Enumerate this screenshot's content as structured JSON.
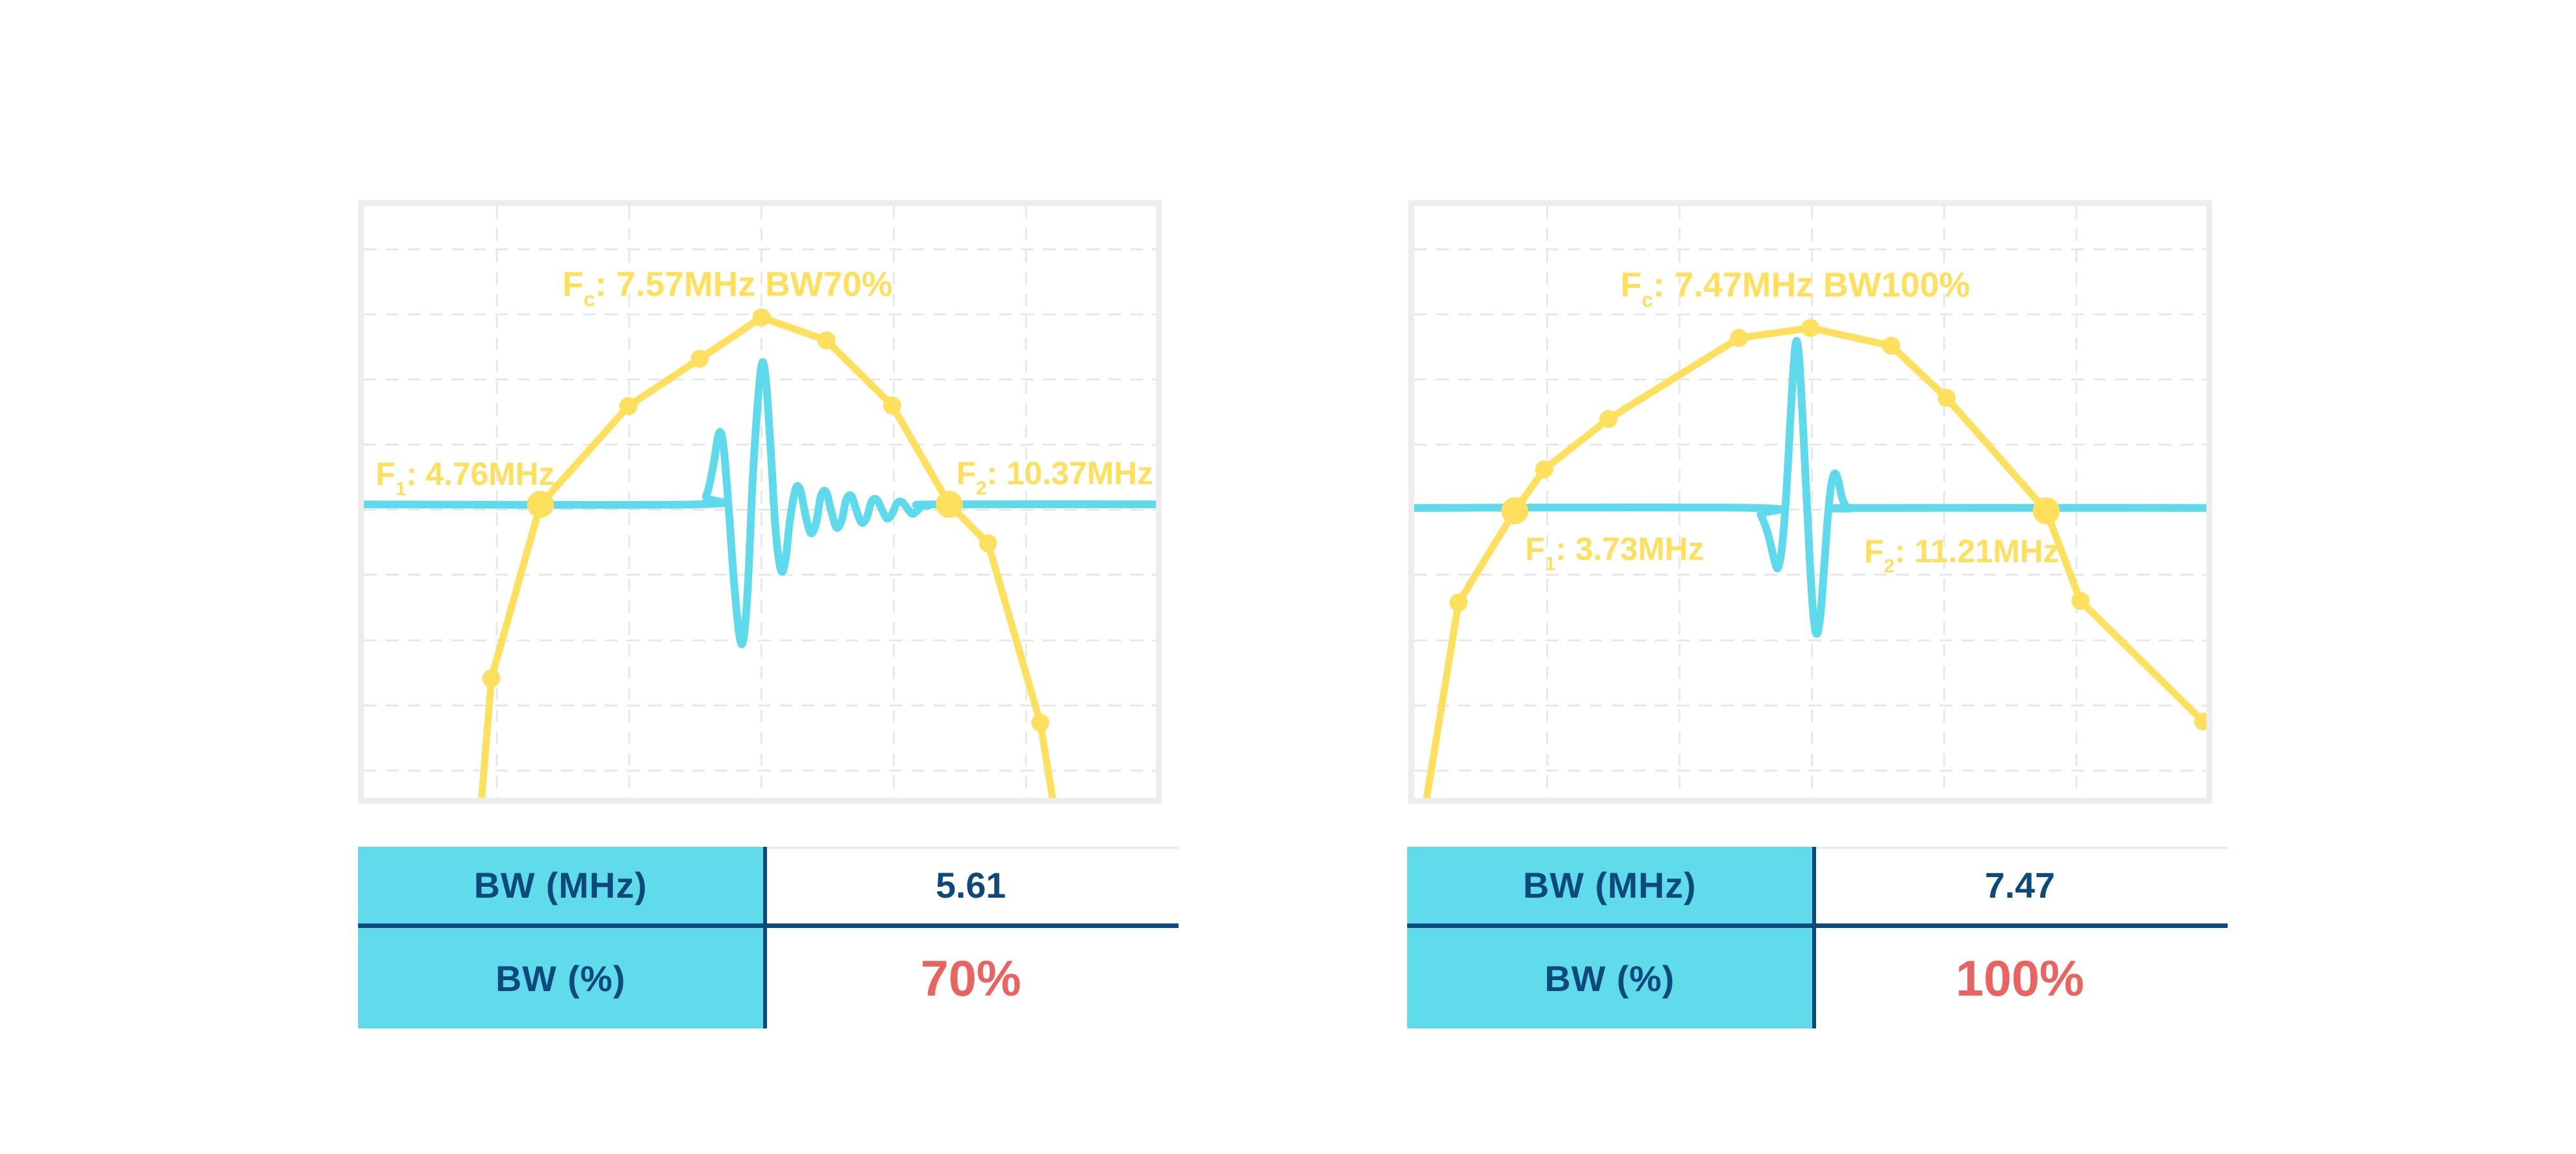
{
  "colors": {
    "yellow": "#FFE05E",
    "cyan": "#5FD9EC",
    "table_fill": "#5FDBEC",
    "dark_blue": "#0D4A7B",
    "red": "#E96360",
    "border": "#EDEDED",
    "grid": "#E8E8E8",
    "light_rule": "#D9EFF7"
  },
  "chart_data": [
    {
      "type": "line",
      "panel": "left",
      "title": {
        "pre": "F",
        "sub": "c",
        "rest": ": 7.57MHz BW70%",
        "x": 0.459,
        "y": 0.152,
        "anchor": "middle"
      },
      "labels": [
        {
          "name": "f1-label",
          "pre": "F",
          "sub": "1",
          "rest": ": 4.76MHz",
          "x": 0.015,
          "y": 0.471,
          "anchor": "start"
        },
        {
          "name": "f2-label",
          "pre": "F",
          "sub": "2",
          "rest": ": 10.37MHz",
          "x": 0.748,
          "y": 0.47,
          "anchor": "start"
        }
      ],
      "values": {
        "fc_mhz": 7.57,
        "f1_mhz": 4.76,
        "f2_mhz": 10.37,
        "bw_mhz": 5.61,
        "bw_pct": 70
      },
      "baseline_y": 0.504,
      "grid": {
        "vx": [
          0.168,
          0.335,
          0.502,
          0.669,
          0.836
        ],
        "hy": [
          0.073,
          0.183,
          0.293,
          0.403,
          0.513,
          0.623,
          0.734,
          0.844,
          0.954
        ]
      },
      "spectrum": [
        [
          0.147,
          1.03,
          0
        ],
        [
          0.161,
          0.798,
          1
        ],
        [
          0.223,
          0.504,
          2
        ],
        [
          0.334,
          0.338,
          1
        ],
        [
          0.424,
          0.258,
          1
        ],
        [
          0.502,
          0.188,
          1
        ],
        [
          0.584,
          0.227,
          1
        ],
        [
          0.667,
          0.337,
          1
        ],
        [
          0.739,
          0.504,
          2
        ],
        [
          0.788,
          0.57,
          1
        ],
        [
          0.854,
          0.873,
          1
        ],
        [
          0.873,
          1.03,
          0
        ]
      ],
      "waveform": [
        [
          0,
          0.504
        ],
        [
          0.42,
          0.504
        ],
        [
          0.432,
          0.49
        ],
        [
          0.441,
          0.44
        ],
        [
          0.448,
          0.385
        ],
        [
          0.4535,
          0.4
        ],
        [
          0.46,
          0.5
        ],
        [
          0.467,
          0.63
        ],
        [
          0.474,
          0.725
        ],
        [
          0.479,
          0.733
        ],
        [
          0.4845,
          0.65
        ],
        [
          0.491,
          0.46
        ],
        [
          0.498,
          0.32
        ],
        [
          0.503,
          0.264
        ],
        [
          0.508,
          0.3
        ],
        [
          0.514,
          0.42
        ],
        [
          0.52,
          0.55
        ],
        [
          0.5265,
          0.615
        ],
        [
          0.532,
          0.6
        ],
        [
          0.538,
          0.53
        ],
        [
          0.545,
          0.478
        ],
        [
          0.551,
          0.48
        ],
        [
          0.558,
          0.525
        ],
        [
          0.5645,
          0.553
        ],
        [
          0.571,
          0.535
        ],
        [
          0.577,
          0.49
        ],
        [
          0.5835,
          0.483
        ],
        [
          0.59,
          0.515
        ],
        [
          0.5965,
          0.543
        ],
        [
          0.603,
          0.532
        ],
        [
          0.609,
          0.496
        ],
        [
          0.6155,
          0.49
        ],
        [
          0.622,
          0.515
        ],
        [
          0.6285,
          0.535
        ],
        [
          0.635,
          0.526
        ],
        [
          0.641,
          0.499
        ],
        [
          0.6475,
          0.496
        ],
        [
          0.654,
          0.513
        ],
        [
          0.6605,
          0.528
        ],
        [
          0.667,
          0.52
        ],
        [
          0.673,
          0.502
        ],
        [
          0.6795,
          0.5
        ],
        [
          0.686,
          0.511
        ],
        [
          0.6925,
          0.52
        ],
        [
          0.699,
          0.514
        ],
        [
          0.7055,
          0.505
        ],
        [
          0.712,
          0.507
        ],
        [
          0.72,
          0.504
        ],
        [
          1.0,
          0.504
        ]
      ]
    },
    {
      "type": "line",
      "panel": "right",
      "title": {
        "pre": "F",
        "sub": "c",
        "rest": ": 7.47MHz BW100%",
        "x": 0.481,
        "y": 0.153,
        "anchor": "middle"
      },
      "labels": [
        {
          "name": "f1-label",
          "pre": "F",
          "sub": "1",
          "rest": ": 3.73MHz",
          "x": 0.14,
          "y": 0.598,
          "anchor": "start"
        },
        {
          "name": "f2-label",
          "pre": "F",
          "sub": "2",
          "rest": ": 11.21MHz",
          "x": 0.568,
          "y": 0.602,
          "anchor": "start"
        }
      ],
      "values": {
        "fc_mhz": 7.47,
        "f1_mhz": 3.73,
        "f2_mhz": 11.21,
        "bw_mhz": 7.47,
        "bw_pct": 100
      },
      "baseline_y": 0.51,
      "grid": {
        "vx": [
          0.168,
          0.335,
          0.502,
          0.669,
          0.836
        ],
        "hy": [
          0.073,
          0.183,
          0.293,
          0.403,
          0.513,
          0.623,
          0.734,
          0.844,
          0.954
        ]
      },
      "spectrum": [
        [
          0.012,
          1.03,
          0
        ],
        [
          0.056,
          0.67,
          1
        ],
        [
          0.127,
          0.515,
          2
        ],
        [
          0.164,
          0.445,
          1
        ],
        [
          0.245,
          0.36,
          1
        ],
        [
          0.41,
          0.223,
          1
        ],
        [
          0.5,
          0.206,
          1
        ],
        [
          0.602,
          0.236,
          1
        ],
        [
          0.672,
          0.324,
          1
        ],
        [
          0.798,
          0.515,
          2
        ],
        [
          0.841,
          0.667,
          1
        ],
        [
          0.996,
          0.871,
          1
        ]
      ],
      "waveform": [
        [
          0,
          0.51
        ],
        [
          0.428,
          0.51
        ],
        [
          0.4375,
          0.522
        ],
        [
          0.447,
          0.556
        ],
        [
          0.4545,
          0.598
        ],
        [
          0.459,
          0.612
        ],
        [
          0.4635,
          0.585
        ],
        [
          0.468,
          0.52
        ],
        [
          0.4725,
          0.42
        ],
        [
          0.477,
          0.31
        ],
        [
          0.4815,
          0.232
        ],
        [
          0.4855,
          0.25
        ],
        [
          0.49,
          0.35
        ],
        [
          0.4945,
          0.47
        ],
        [
          0.499,
          0.59
        ],
        [
          0.5035,
          0.685
        ],
        [
          0.508,
          0.723
        ],
        [
          0.5125,
          0.695
        ],
        [
          0.517,
          0.62
        ],
        [
          0.5215,
          0.535
        ],
        [
          0.526,
          0.475
        ],
        [
          0.5305,
          0.452
        ],
        [
          0.535,
          0.462
        ],
        [
          0.5395,
          0.49
        ],
        [
          0.544,
          0.505
        ],
        [
          0.55,
          0.511
        ],
        [
          0.56,
          0.51
        ],
        [
          1.0,
          0.51
        ]
      ]
    }
  ],
  "tables": [
    {
      "rows": [
        {
          "label": "BW (MHz)",
          "value": "5.61"
        },
        {
          "label": "BW (%)",
          "value": "70%"
        }
      ]
    },
    {
      "rows": [
        {
          "label": "BW (MHz)",
          "value": "7.47"
        },
        {
          "label": "BW (%)",
          "value": "100%"
        }
      ]
    }
  ]
}
